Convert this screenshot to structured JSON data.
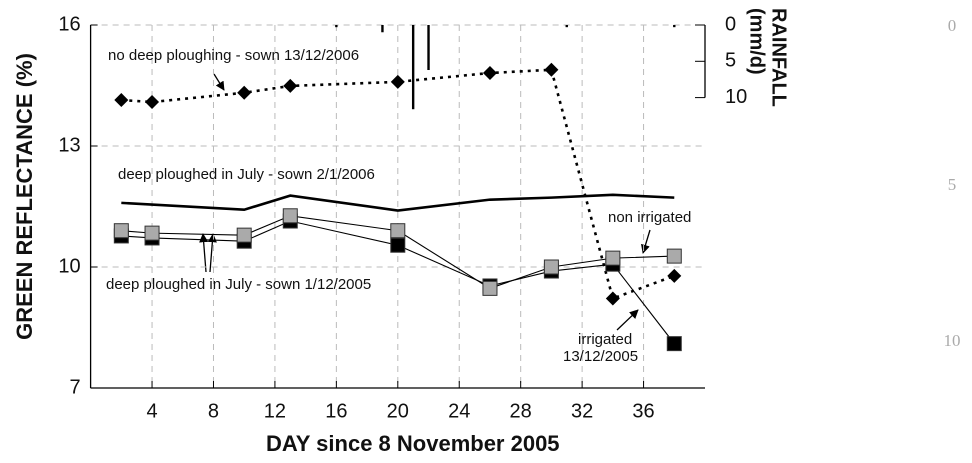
{
  "chart_data": {
    "type": "line",
    "xlabel": "DAY since 8 November 2005",
    "ylabel": "GREEN REFLECTANCE (%)",
    "y2label": [
      "RAINFALL",
      "(mm/d)"
    ],
    "xlim": [
      0,
      40
    ],
    "xticks": [
      4,
      8,
      12,
      16,
      20,
      24,
      28,
      32,
      36
    ],
    "ylim": [
      7,
      16
    ],
    "yticks": [
      7,
      10,
      13,
      16
    ],
    "y2lim": [
      0,
      50
    ],
    "y2ticks": [
      0,
      5,
      10
    ],
    "y2_inverted": true,
    "grid": true,
    "series": [
      {
        "color": "#000000",
        "marker": "diamond",
        "line": "dotted",
        "x": [
          2,
          4,
          10,
          13,
          20,
          26,
          30,
          34,
          38
        ],
        "values": [
          14.14,
          14.09,
          14.32,
          14.49,
          14.59,
          14.81,
          14.89,
          9.22,
          9.78
        ]
      },
      {
        "color": "#000000",
        "marker": "none",
        "line": "thick",
        "x": [
          2,
          10,
          13,
          20,
          26,
          30,
          34,
          38
        ],
        "values": [
          11.59,
          11.42,
          11.77,
          11.4,
          11.67,
          11.72,
          11.79,
          11.72
        ]
      },
      {
        "color": "#000000",
        "marker": "square",
        "line": "thin",
        "x": [
          2,
          4,
          10,
          13,
          20,
          26,
          30,
          34,
          38
        ],
        "values": [
          10.77,
          10.72,
          10.64,
          11.14,
          10.54,
          9.53,
          9.9,
          10.07,
          8.1
        ]
      },
      {
        "color": "#aaaaaa",
        "marker": "square",
        "line": "thin",
        "x": [
          2,
          4,
          10,
          13,
          20,
          26,
          30,
          34,
          38
        ],
        "values": [
          10.9,
          10.84,
          10.79,
          11.27,
          10.9,
          9.47,
          10.0,
          10.22,
          10.27
        ]
      },
      {
        "color": "#000000",
        "type": "bar",
        "axis": "y2",
        "x": [
          16,
          19,
          21,
          22,
          31,
          38
        ],
        "values": [
          0.3,
          1,
          11.6,
          6.2,
          0.3,
          0.3
        ]
      }
    ],
    "annotations": [
      "no deep ploughing - sown 13/12/2006",
      "deep ploughed in July - sown 2/1/2006",
      "non irrigated",
      "deep ploughed in July - sown 1/12/2005",
      "irrigated",
      "13/12/2005"
    ],
    "side_labels": [
      "0",
      "5",
      "10"
    ]
  }
}
